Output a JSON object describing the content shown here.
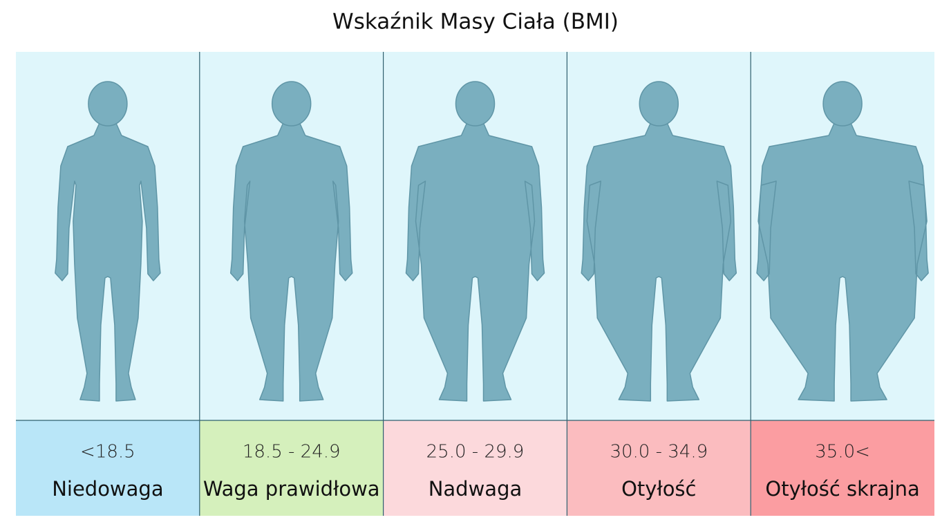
{
  "title": "Wskaźnik Masy Ciała (BMI)",
  "categories": [
    {
      "range": "<18.5",
      "label": "Niedowaga",
      "color": "#b9e6f8"
    },
    {
      "range": "18.5 - 24.9",
      "label": "Waga prawidłowa",
      "color": "#d5f0bc"
    },
    {
      "range": "25.0 - 29.9",
      "label": "Nadwaga",
      "color": "#fcd9dc"
    },
    {
      "range": "30.0 - 34.9",
      "label": "Otyłość",
      "color": "#fbbcbf"
    },
    {
      "range": "35.0<",
      "label": "Otyłość skrajna",
      "color": "#fb9da1"
    }
  ]
}
